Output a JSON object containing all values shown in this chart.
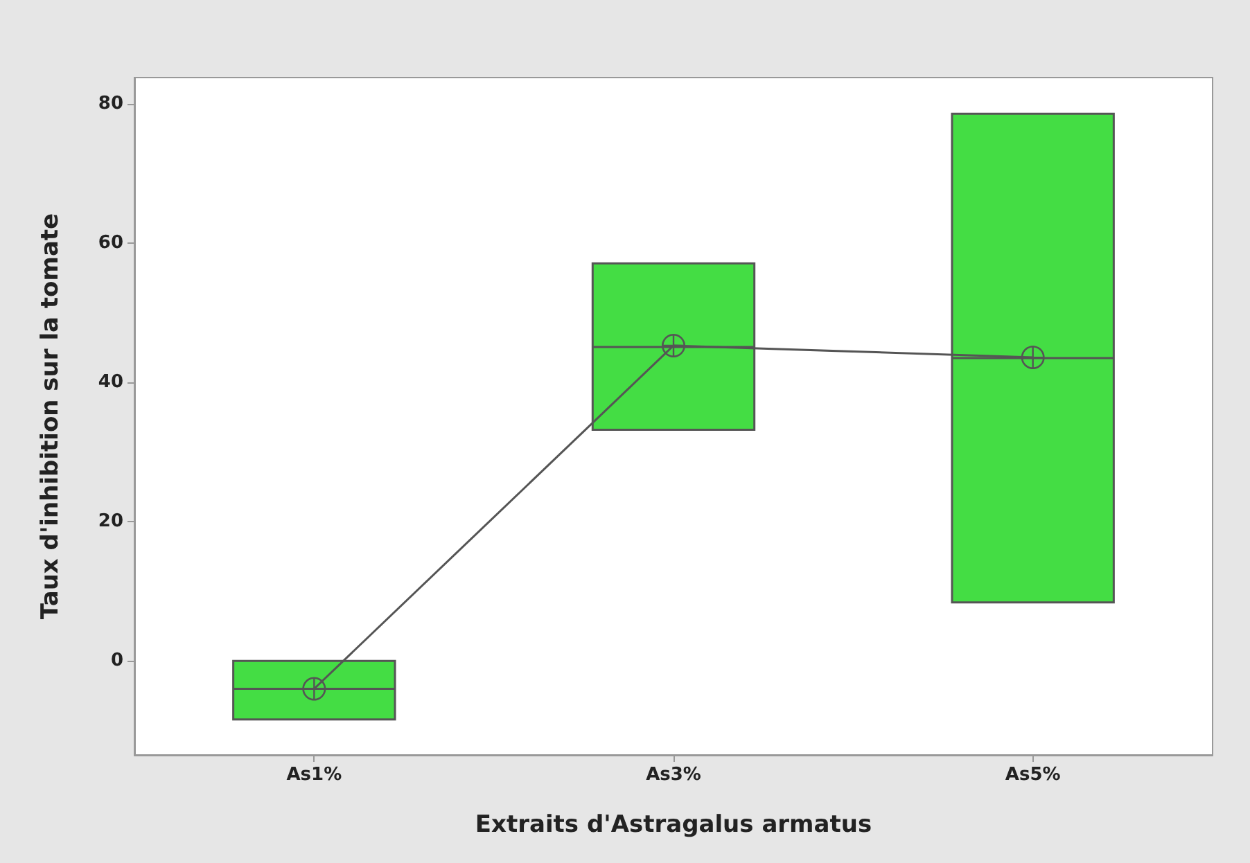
{
  "chart_data": {
    "type": "box",
    "xlabel": "Extraits d'Astragalus armatus",
    "ylabel": "Taux d'inhibition sur la tomate",
    "categories": [
      "As1%",
      "As3%",
      "As5%"
    ],
    "boxes": [
      {
        "low": -8.4,
        "q1": -8.4,
        "median": -4.0,
        "q3": 0,
        "high": 0
      },
      {
        "low": 33.2,
        "q1": 33.2,
        "median": 45.1,
        "q3": 57.1,
        "high": 57.1
      },
      {
        "low": 8.4,
        "q1": 8.4,
        "median": 43.5,
        "q3": 78.6,
        "high": 78.6
      }
    ],
    "color": "#44dd44",
    "series": [
      {
        "type": "line",
        "color": "#555555",
        "values": [
          -4.0,
          45.3,
          43.6
        ]
      }
    ],
    "marker": "circle",
    "ylim": [
      -13.5,
      83.8
    ],
    "yticks": [
      0,
      20,
      40,
      60,
      80
    ],
    "grid": false
  }
}
